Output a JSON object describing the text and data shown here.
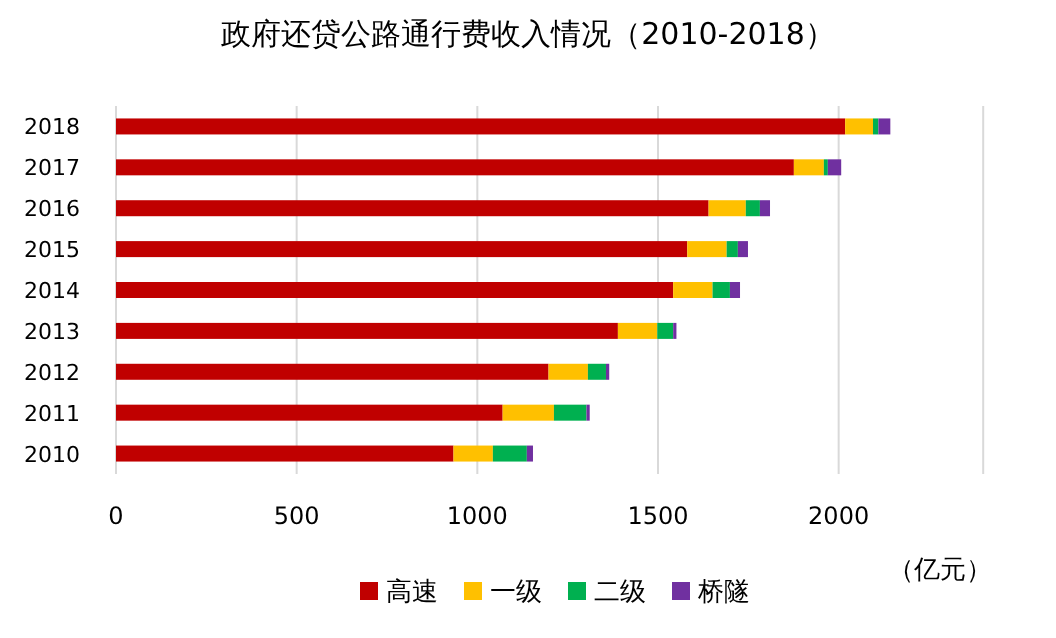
{
  "chart_data": {
    "type": "bar",
    "orientation": "horizontal",
    "stacked": true,
    "title": "政府还贷公路通行费收入情况（2010-2018）",
    "xlabel": "（亿元）",
    "categories": [
      "2018",
      "2017",
      "2016",
      "2015",
      "2014",
      "2013",
      "2012",
      "2011",
      "2010"
    ],
    "series": [
      {
        "name": "高速",
        "color": "#c00000",
        "values": [
          2018,
          1876,
          1640,
          1581,
          1542,
          1389,
          1197,
          1070,
          934
        ]
      },
      {
        "name": "一级",
        "color": "#ffc000",
        "values": [
          77,
          83,
          103,
          109,
          109,
          109,
          109,
          142,
          109
        ]
      },
      {
        "name": "二级",
        "color": "#00b050",
        "values": [
          15,
          11,
          39,
          31,
          48,
          44,
          50,
          90,
          94
        ]
      },
      {
        "name": "桥隧",
        "color": "#7030a0",
        "values": [
          33,
          37,
          28,
          28,
          28,
          9,
          9,
          9,
          17
        ]
      }
    ],
    "xlim": [
      0,
      2400
    ],
    "xticks": [
      0,
      500,
      1000,
      1500,
      2000,
      {
        "value": 2400,
        "label": null
      }
    ],
    "grid": "x",
    "legend": "bottom"
  }
}
